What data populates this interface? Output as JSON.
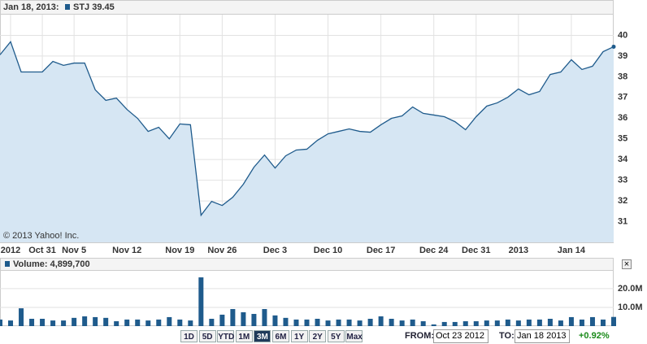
{
  "chart_data": [
    {
      "type": "line",
      "date_label": "Jan 18, 2013:",
      "annotation": "© 2013 Yahoo! Inc.",
      "series": [
        {
          "name": "STJ 39.45",
          "color": "#1f5b8c",
          "fill": "#d6e6f3",
          "values": [
            39.06,
            39.69,
            38.23,
            38.23,
            38.23,
            38.74,
            38.55,
            38.66,
            38.66,
            37.37,
            36.86,
            36.97,
            36.42,
            35.99,
            35.36,
            35.56,
            35.0,
            35.72,
            35.68,
            31.31,
            31.98,
            31.78,
            32.18,
            32.81,
            33.63,
            34.22,
            33.59,
            34.18,
            34.46,
            34.5,
            34.93,
            35.24,
            35.36,
            35.48,
            35.36,
            35.32,
            35.68,
            35.99,
            36.11,
            36.54,
            36.23,
            36.15,
            36.07,
            35.83,
            35.44,
            36.07,
            36.58,
            36.74,
            37.01,
            37.41,
            37.13,
            37.29,
            38.11,
            38.23,
            38.82,
            38.35,
            38.51,
            39.21,
            39.45
          ]
        }
      ],
      "xlim": [
        0,
        58
      ],
      "xticks": [
        {
          "value": 1,
          "label": "2012"
        },
        {
          "value": 4,
          "label": "Oct 31"
        },
        {
          "value": 7,
          "label": "Nov 5"
        },
        {
          "value": 12,
          "label": "Nov 12"
        },
        {
          "value": 17,
          "label": "Nov 19"
        },
        {
          "value": 21,
          "label": "Nov 26"
        },
        {
          "value": 26,
          "label": "Dec 3"
        },
        {
          "value": 31,
          "label": "Dec 10"
        },
        {
          "value": 36,
          "label": "Dec 17"
        },
        {
          "value": 41,
          "label": "Dec 24"
        },
        {
          "value": 45,
          "label": "Dec 31"
        },
        {
          "value": 49,
          "label": "2013"
        },
        {
          "value": 54,
          "label": "Jan 14"
        }
      ],
      "ylim": [
        30,
        41
      ],
      "yticks": [
        31,
        32,
        33,
        34,
        35,
        36,
        37,
        38,
        39,
        40
      ],
      "grid": true
    },
    {
      "type": "bar",
      "series": [
        {
          "name": "Volume: 4,899,700",
          "color": "#1f5b8c",
          "values": [
            3500000,
            3000000,
            9500000,
            3900000,
            3900000,
            3000000,
            3000000,
            4400000,
            5200000,
            4800000,
            4400000,
            2600000,
            3500000,
            3500000,
            3000000,
            3500000,
            4800000,
            3500000,
            3000000,
            26000000,
            3900000,
            6100000,
            9100000,
            7400000,
            6500000,
            9100000,
            5700000,
            4400000,
            3500000,
            3500000,
            3900000,
            3000000,
            3500000,
            3500000,
            3000000,
            3900000,
            5200000,
            3900000,
            3000000,
            3500000,
            2600000,
            900000,
            2200000,
            2200000,
            2600000,
            2600000,
            3000000,
            3000000,
            3500000,
            3000000,
            3500000,
            3500000,
            3900000,
            3000000,
            4800000,
            3500000,
            4800000,
            3500000,
            4899700
          ]
        }
      ],
      "xlim": [
        0,
        58
      ],
      "ylim": [
        0,
        29500000
      ],
      "yticks": [
        {
          "value": 10000000,
          "label": "10.0M"
        },
        {
          "value": 20000000,
          "label": "20.0M"
        }
      ]
    }
  ],
  "controls": {
    "ranges": [
      "1D",
      "5D",
      "YTD",
      "1M",
      "3M",
      "6M",
      "1Y",
      "2Y",
      "5Y",
      "Max"
    ],
    "selected_index": 4,
    "from_label": "FROM:",
    "from_value": "Oct 23 2012",
    "to_label": "TO:",
    "to_value": "Jan 18 2013",
    "change": "+0.92%",
    "close": "×"
  }
}
